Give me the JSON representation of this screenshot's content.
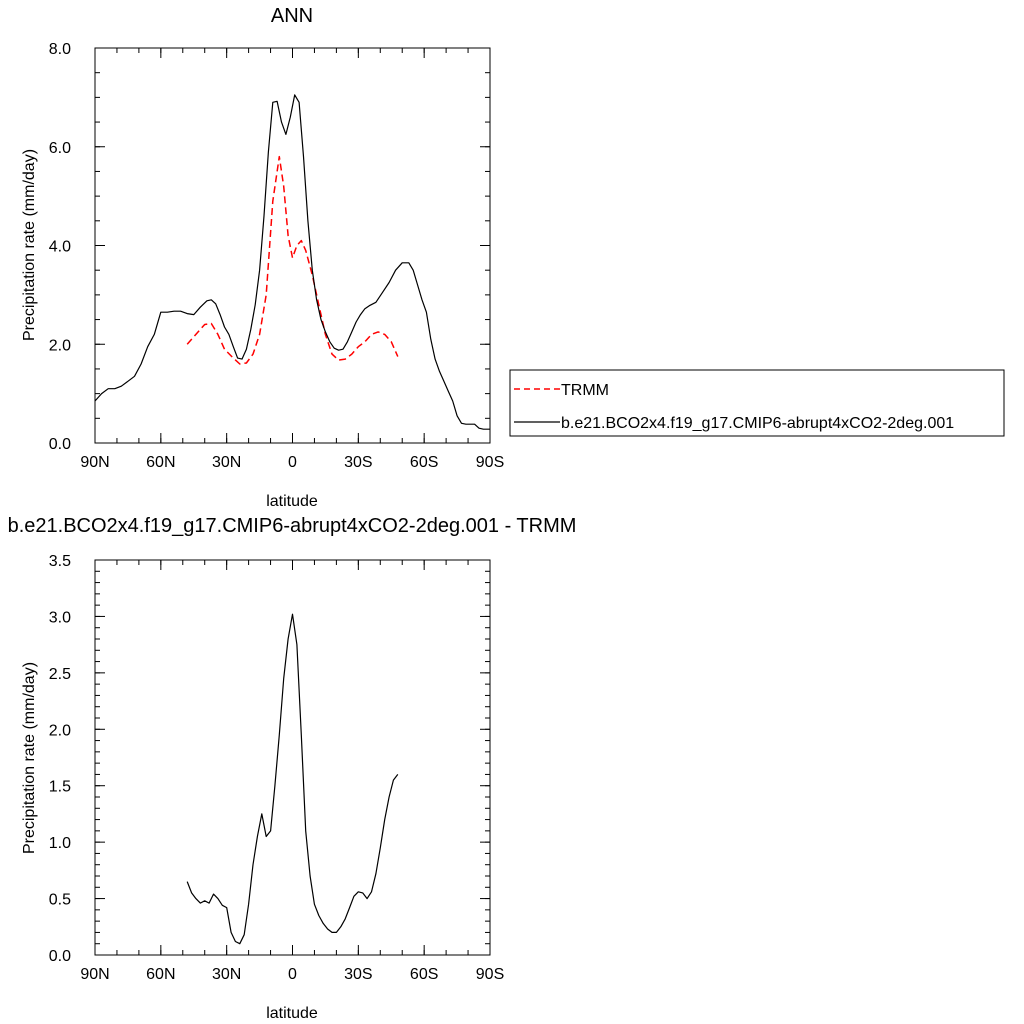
{
  "chart_data": [
    {
      "type": "line",
      "title": "ANN",
      "xlabel": "latitude",
      "ylabel": "Precipitation rate (mm/day)",
      "xlim": [
        -90,
        90
      ],
      "ylim": [
        0,
        8
      ],
      "x_ticks": [
        {
          "value": -90,
          "label": "90N"
        },
        {
          "value": -60,
          "label": "60N"
        },
        {
          "value": -30,
          "label": "30N"
        },
        {
          "value": 0,
          "label": "0"
        },
        {
          "value": 30,
          "label": "30S"
        },
        {
          "value": 60,
          "label": "60S"
        },
        {
          "value": 90,
          "label": "90S"
        }
      ],
      "y_ticks": [
        {
          "value": 0,
          "label": "0.0"
        },
        {
          "value": 2,
          "label": "2.0"
        },
        {
          "value": 4,
          "label": "4.0"
        },
        {
          "value": 6,
          "label": "6.0"
        },
        {
          "value": 8,
          "label": "8.0"
        }
      ],
      "legend": {
        "placement": "right, outside plot"
      },
      "series": [
        {
          "name": "TRMM",
          "color": "#ff0000",
          "dash": "dashed",
          "x": [
            -48,
            -44,
            -40,
            -37,
            -34,
            -31,
            -27,
            -24,
            -21,
            -18,
            -15,
            -12,
            -9,
            -6,
            -4,
            -2,
            0,
            2,
            4,
            6,
            9,
            12,
            15,
            18,
            21,
            24,
            27,
            30,
            33,
            36,
            39,
            42,
            45,
            48
          ],
          "y": [
            2.0,
            2.2,
            2.4,
            2.42,
            2.2,
            1.9,
            1.72,
            1.6,
            1.62,
            1.8,
            2.2,
            3.0,
            4.9,
            5.8,
            5.2,
            4.2,
            3.75,
            4.0,
            4.1,
            3.9,
            3.4,
            2.8,
            2.2,
            1.8,
            1.68,
            1.7,
            1.8,
            1.95,
            2.05,
            2.2,
            2.25,
            2.2,
            2.05,
            1.75
          ]
        },
        {
          "name": "b.e21.BCO2x4.f19_g17.CMIP6-abrupt4xCO2-2deg.001",
          "color": "#000000",
          "dash": "solid",
          "x": [
            -90,
            -87,
            -84,
            -81,
            -78,
            -75,
            -72,
            -69,
            -66,
            -63,
            -60,
            -57,
            -54,
            -51,
            -48,
            -45,
            -42,
            -39,
            -37,
            -35,
            -33,
            -31,
            -29,
            -27,
            -25,
            -23,
            -21,
            -19,
            -17,
            -15,
            -13,
            -11,
            -9,
            -7,
            -5,
            -3,
            -1,
            1,
            3,
            5,
            7,
            9,
            11,
            13,
            15,
            17,
            19,
            21,
            23,
            25,
            27,
            29,
            31,
            33,
            35,
            38,
            41,
            44,
            47,
            50,
            53,
            55,
            57,
            59,
            61,
            63,
            65,
            67,
            69,
            71,
            73,
            75,
            77,
            79,
            81,
            83,
            85,
            87,
            90
          ],
          "y": [
            0.85,
            1.0,
            1.1,
            1.1,
            1.15,
            1.25,
            1.35,
            1.6,
            1.95,
            2.2,
            2.65,
            2.65,
            2.67,
            2.67,
            2.62,
            2.6,
            2.75,
            2.88,
            2.9,
            2.82,
            2.6,
            2.35,
            2.2,
            1.95,
            1.72,
            1.7,
            1.9,
            2.3,
            2.8,
            3.5,
            4.6,
            5.9,
            6.9,
            6.92,
            6.5,
            6.25,
            6.6,
            7.05,
            6.9,
            5.8,
            4.5,
            3.5,
            2.9,
            2.5,
            2.25,
            2.05,
            1.92,
            1.88,
            1.9,
            2.05,
            2.25,
            2.45,
            2.6,
            2.72,
            2.78,
            2.85,
            3.05,
            3.25,
            3.5,
            3.65,
            3.65,
            3.5,
            3.2,
            2.9,
            2.65,
            2.1,
            1.7,
            1.45,
            1.25,
            1.05,
            0.85,
            0.55,
            0.4,
            0.38,
            0.38,
            0.38,
            0.3,
            0.28,
            0.28
          ]
        }
      ]
    },
    {
      "type": "line",
      "title": "b.e21.BCO2x4.f19_g17.CMIP6-abrupt4xCO2-2deg.001 - TRMM",
      "xlabel": "latitude",
      "ylabel": "Precipitation rate (mm/day)",
      "xlim": [
        -90,
        90
      ],
      "ylim": [
        0,
        3.5
      ],
      "x_ticks": [
        {
          "value": -90,
          "label": "90N"
        },
        {
          "value": -60,
          "label": "60N"
        },
        {
          "value": -30,
          "label": "30N"
        },
        {
          "value": 0,
          "label": "0"
        },
        {
          "value": 30,
          "label": "30S"
        },
        {
          "value": 60,
          "label": "60S"
        },
        {
          "value": 90,
          "label": "90S"
        }
      ],
      "y_ticks": [
        {
          "value": 0,
          "label": "0.0"
        },
        {
          "value": 0.5,
          "label": "0.5"
        },
        {
          "value": 1,
          "label": "1.0"
        },
        {
          "value": 1.5,
          "label": "1.5"
        },
        {
          "value": 2,
          "label": "2.0"
        },
        {
          "value": 2.5,
          "label": "2.5"
        },
        {
          "value": 3,
          "label": "3.0"
        },
        {
          "value": 3.5,
          "label": "3.5"
        }
      ],
      "series": [
        {
          "color": "#000000",
          "dash": "solid",
          "x": [
            -48,
            -46,
            -44,
            -42,
            -40,
            -38,
            -36,
            -34,
            -32,
            -30,
            -28,
            -26,
            -24,
            -22,
            -20,
            -18,
            -16,
            -14,
            -12,
            -10,
            -8,
            -6,
            -4,
            -2,
            0,
            2,
            4,
            6,
            8,
            10,
            12,
            14,
            16,
            18,
            20,
            22,
            24,
            26,
            28,
            30,
            32,
            34,
            36,
            38,
            40,
            42,
            44,
            46,
            48
          ],
          "y": [
            0.65,
            0.55,
            0.5,
            0.46,
            0.48,
            0.46,
            0.54,
            0.5,
            0.44,
            0.42,
            0.2,
            0.12,
            0.1,
            0.18,
            0.45,
            0.8,
            1.05,
            1.25,
            1.05,
            1.1,
            1.5,
            1.95,
            2.45,
            2.8,
            3.02,
            2.75,
            1.95,
            1.1,
            0.7,
            0.45,
            0.35,
            0.28,
            0.23,
            0.2,
            0.2,
            0.25,
            0.32,
            0.42,
            0.52,
            0.56,
            0.55,
            0.5,
            0.56,
            0.72,
            0.95,
            1.2,
            1.4,
            1.55,
            1.6
          ]
        }
      ]
    }
  ]
}
